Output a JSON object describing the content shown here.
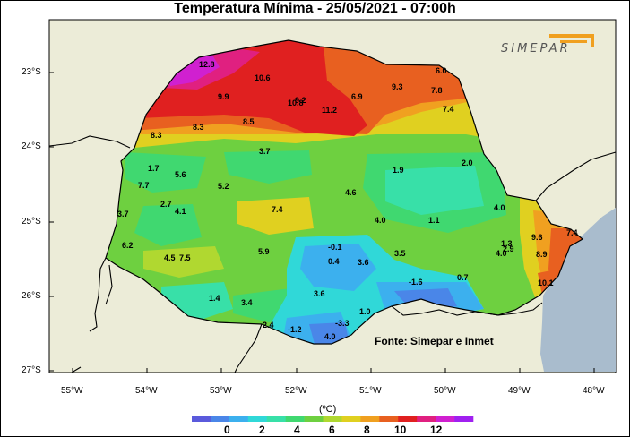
{
  "title": "Temperatura Mínima - 25/05/2021 - 07:00h",
  "source_note": "Fonte: Simepar e Inmet",
  "logo_text": "SIMEPAR",
  "unit_label": "(ºC)",
  "y_axis_labels": [
    "23°S",
    "24°S",
    "25°S",
    "26°S",
    "27°S"
  ],
  "x_axis_labels": [
    "55°W",
    "54°W",
    "53°W",
    "52°W",
    "51°W",
    "50°W",
    "49°W",
    "48°W"
  ],
  "colorbar": {
    "tick_labels": [
      "0",
      "2",
      "4",
      "6",
      "8",
      "10",
      "12"
    ],
    "colors": [
      "#5a5adc",
      "#4a86e8",
      "#3cb0ee",
      "#30d8d8",
      "#38e0a8",
      "#40d870",
      "#6ed040",
      "#b0d830",
      "#e0d020",
      "#f0a020",
      "#e86020",
      "#e02020",
      "#e02080",
      "#d020d0",
      "#a020f0"
    ]
  },
  "station_values": [
    "12.8",
    "10.6",
    "9.9",
    "10.8",
    "9.2",
    "11.2",
    "6.9",
    "9.3",
    "7.8",
    "7.4",
    "6.0",
    "8.3",
    "8.3",
    "8.5",
    "3.7",
    "1.7",
    "5.6",
    "7.7",
    "5.2",
    "2.7",
    "4.1",
    "3.7",
    "7.4",
    "1.9",
    "2.0",
    "4.6",
    "4.0",
    "1.1",
    "4.0",
    "6.2",
    "4.5",
    "7.5",
    "5.9",
    "-0.1",
    "0.4",
    "3.6",
    "3.5",
    "1.3",
    "2.9",
    "4.0",
    "9.6",
    "7.4",
    "8.9",
    "-1.6",
    "0.7",
    "10.1",
    "1.4",
    "3.4",
    "3.6",
    "1.0",
    "2.4",
    "-1.2",
    "-3.3",
    "4.0"
  ]
}
